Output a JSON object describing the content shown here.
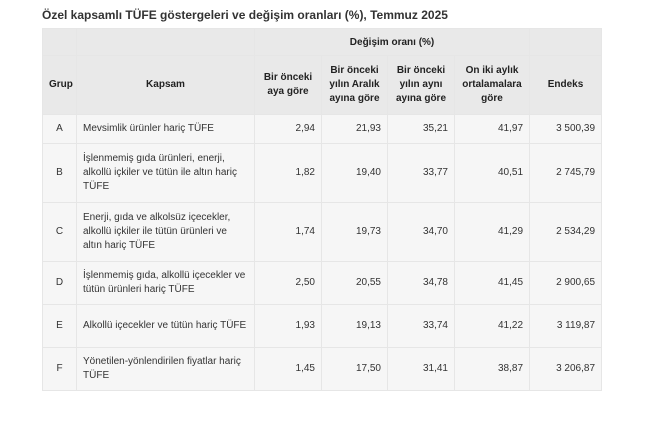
{
  "title": "Özel kapsamlı TÜFE göstergeleri ve değişim oranları (%), Temmuz 2025",
  "table": {
    "group_header": "Değişim oranı (%)",
    "columns": {
      "grup": "Grup",
      "kapsam": "Kapsam",
      "c1": "Bir önceki aya göre",
      "c2": "Bir önceki yılın Aralık ayına göre",
      "c3": "Bir önceki yılın aynı ayına göre",
      "c4": "On iki aylık ortalamalara göre",
      "endeks": "Endeks"
    },
    "rows": [
      {
        "grup": "A",
        "kapsam": "Mevsimlik ürünler hariç TÜFE",
        "c1": "2,94",
        "c2": "21,93",
        "c3": "35,21",
        "c4": "41,97",
        "endeks": "3 500,39"
      },
      {
        "grup": "B",
        "kapsam": "İşlenmemiş gıda ürünleri, enerji, alkollü içkiler ve tütün ile altın hariç TÜFE",
        "c1": "1,82",
        "c2": "19,40",
        "c3": "33,77",
        "c4": "40,51",
        "endeks": "2 745,79"
      },
      {
        "grup": "C",
        "kapsam": "Enerji, gıda ve alkolsüz içecekler, alkollü içkiler ile tütün ürünleri ve altın hariç TÜFE",
        "c1": "1,74",
        "c2": "19,73",
        "c3": "34,70",
        "c4": "41,29",
        "endeks": "2 534,29"
      },
      {
        "grup": "D",
        "kapsam": "İşlenmemiş gıda, alkollü içecekler ve tütün ürünleri hariç TÜFE",
        "c1": "2,50",
        "c2": "20,55",
        "c3": "34,78",
        "c4": "41,45",
        "endeks": "2 900,65"
      },
      {
        "grup": "E",
        "kapsam": "Alkollü içecekler ve tütün hariç TÜFE",
        "c1": "1,93",
        "c2": "19,13",
        "c3": "33,74",
        "c4": "41,22",
        "endeks": "3 119,87"
      },
      {
        "grup": "F",
        "kapsam": "Yönetilen-yönlendirilen fiyatlar hariç TÜFE",
        "c1": "1,45",
        "c2": "17,50",
        "c3": "31,41",
        "c4": "38,87",
        "endeks": "3 206,87"
      }
    ]
  }
}
